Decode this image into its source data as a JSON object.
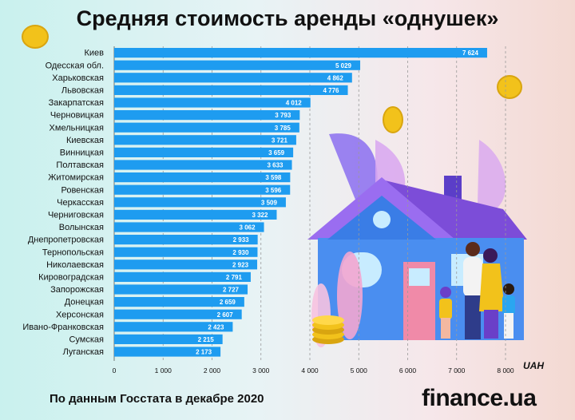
{
  "title": "Средняя стоимость аренды «однушек»",
  "source": "По данным Госстата в декабре 2020",
  "logo": "finance.ua",
  "unit": "UAH",
  "colors": {
    "bar": "#1e9cf0",
    "grid": "#9a9a9a",
    "house": "#4a8ef0",
    "roof": "#7c4dd8",
    "coin": "#f2c21b"
  },
  "chart_data": {
    "type": "bar",
    "orientation": "horizontal",
    "title": "Средняя стоимость аренды «однушек»",
    "unit": "UAH",
    "xlim": [
      0,
      8000
    ],
    "x_ticks": [
      0,
      1000,
      2000,
      3000,
      4000,
      5000,
      6000,
      7000,
      8000
    ],
    "x_tick_labels": [
      "0",
      "1 000",
      "2 000",
      "3 000",
      "4 000",
      "5 000",
      "6 000",
      "7 000",
      "8 000"
    ],
    "grid": "vertical dashed",
    "categories": [
      "Киев",
      "Одесская обл.",
      "Харьковская",
      "Львовская",
      "Закарпатская",
      "Черновицкая",
      "Хмельницкая",
      "Киевская",
      "Винницкая",
      "Полтавская",
      "Житомирская",
      "Ровенская",
      "Черкасская",
      "Черниговская",
      "Волынская",
      "Днепропетровская",
      "Тернопольская",
      "Николаевская",
      "Кировоградская",
      "Запорожская",
      "Донецкая",
      "Херсонская",
      "Ивано-Франковская",
      "Сумская",
      "Луганская"
    ],
    "values": [
      7624,
      5029,
      4862,
      4776,
      4012,
      3793,
      3785,
      3721,
      3659,
      3633,
      3598,
      3596,
      3509,
      3322,
      3062,
      2933,
      2930,
      2923,
      2791,
      2727,
      2659,
      2607,
      2423,
      2215,
      2173
    ],
    "value_labels": [
      "7 624",
      "5 029",
      "4 862",
      "4 776",
      "4 012",
      "3 793",
      "3 785",
      "3 721",
      "3 659",
      "3 633",
      "3 598",
      "3 596",
      "3 509",
      "3 322",
      "3 062",
      "2 933",
      "2 930",
      "2 923",
      "2 791",
      "2 727",
      "2 659",
      "2 607",
      "2 423",
      "2 215",
      "2 173"
    ]
  }
}
